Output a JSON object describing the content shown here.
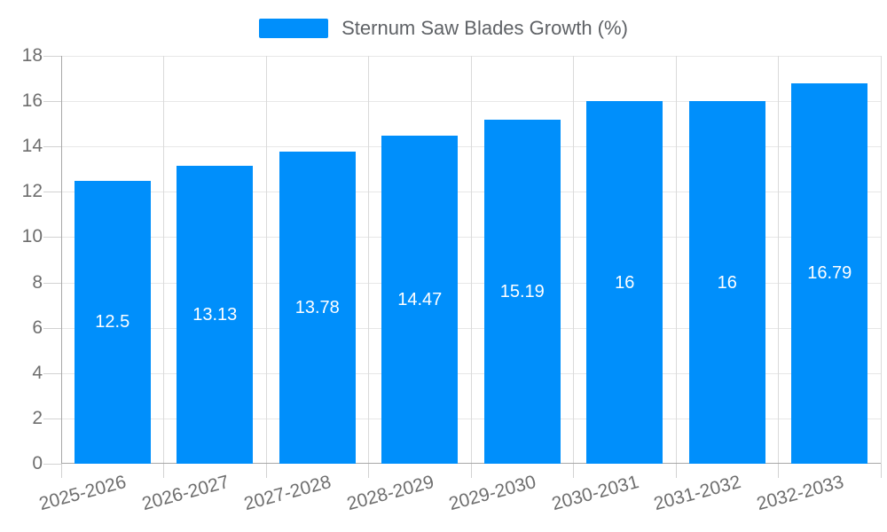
{
  "chart_data": {
    "type": "bar",
    "title": "",
    "series_name": "Sternum Saw Blades Growth (%)",
    "categories": [
      "2025-2026",
      "2026-2027",
      "2027-2028",
      "2028-2029",
      "2029-2030",
      "2030-2031",
      "2031-2032",
      "2032-2033"
    ],
    "values": [
      12.5,
      13.13,
      13.78,
      14.47,
      15.19,
      16,
      16,
      16.79
    ],
    "value_labels": [
      "12.5",
      "13.13",
      "13.78",
      "14.47",
      "15.19",
      "16",
      "16",
      "16.79"
    ],
    "xlabel": "",
    "ylabel": "",
    "ylim": [
      0,
      18
    ],
    "ytick_step": 2,
    "ytick_labels": [
      "0",
      "2",
      "4",
      "6",
      "8",
      "10",
      "12",
      "14",
      "16",
      "18"
    ],
    "grid": true,
    "legend_position": "top"
  },
  "colors": {
    "bar": "#008FFB",
    "grid_h": "#e7e7e7",
    "grid_v": "#dadada",
    "axis_line": "#a8a8a8",
    "tick": "#d2d2d2",
    "axis_label": "#6e6e6e",
    "legend_text": "#5f6266",
    "value_label": "#ffffff",
    "background": "#ffffff"
  }
}
